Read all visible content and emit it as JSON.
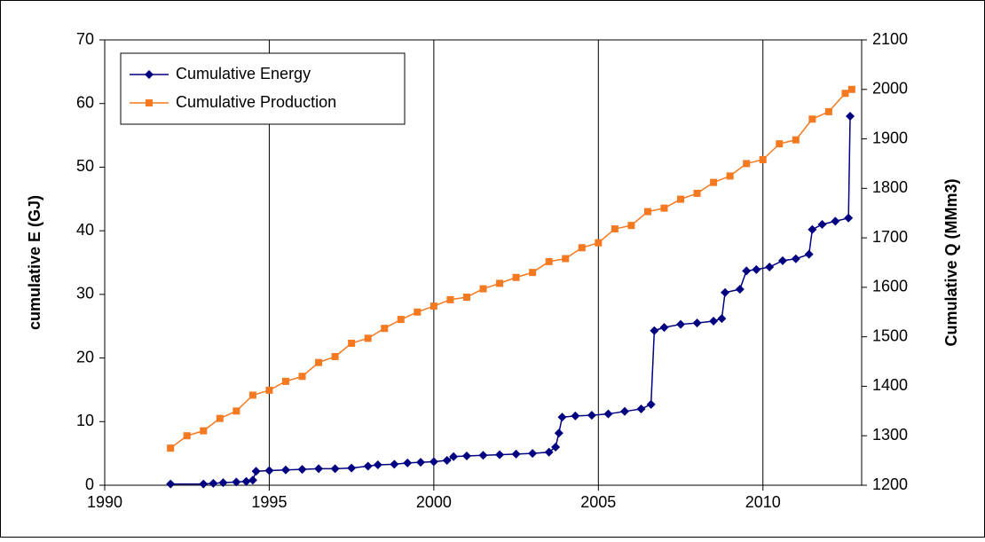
{
  "chart_data": {
    "type": "line",
    "y_label": "cumulative E (GJ)",
    "y2_label": "Cumulative Q (MMm3)",
    "xlim": [
      1990,
      2013
    ],
    "xticks": [
      1990,
      1995,
      2000,
      2005,
      2010
    ],
    "ylim": [
      0,
      70
    ],
    "yticks": [
      0,
      10,
      20,
      30,
      40,
      50,
      60,
      70
    ],
    "y2lim": [
      1200,
      2100
    ],
    "y2ticks": [
      1200,
      1300,
      1400,
      1500,
      1600,
      1700,
      1800,
      1900,
      2000,
      2100
    ],
    "grid": "x",
    "legend": "upper left",
    "series": [
      {
        "name": "Cumulative Energy",
        "color": "#000080",
        "marker": "diamond",
        "x": [
          1992.0,
          1993.0,
          1993.3,
          1993.6,
          1994.0,
          1994.3,
          1994.5,
          1994.6,
          1995.0,
          1995.5,
          1996.0,
          1996.5,
          1997.0,
          1997.5,
          1998.0,
          1998.3,
          1998.8,
          1999.2,
          1999.6,
          2000.0,
          2000.4,
          2000.6,
          2001.0,
          2001.5,
          2002.0,
          2002.5,
          2003.0,
          2003.5,
          2003.7,
          2003.8,
          2003.9,
          2004.3,
          2004.8,
          2005.3,
          2005.8,
          2006.3,
          2006.6,
          2006.7,
          2007.0,
          2007.5,
          2008.0,
          2008.5,
          2008.75,
          2008.85,
          2009.3,
          2009.5,
          2009.8,
          2010.2,
          2010.6,
          2011.0,
          2011.4,
          2011.5,
          2011.8,
          2012.2,
          2012.6,
          2012.65
        ],
        "values": [
          0.2,
          0.2,
          0.3,
          0.4,
          0.5,
          0.6,
          0.8,
          2.2,
          2.3,
          2.4,
          2.5,
          2.6,
          2.6,
          2.7,
          3.0,
          3.2,
          3.3,
          3.5,
          3.6,
          3.7,
          3.9,
          4.5,
          4.6,
          4.7,
          4.8,
          4.9,
          5.0,
          5.2,
          6.0,
          8.2,
          10.7,
          10.9,
          11.0,
          11.2,
          11.6,
          12.0,
          12.7,
          24.3,
          24.8,
          25.3,
          25.5,
          25.8,
          26.2,
          30.3,
          30.8,
          33.7,
          33.9,
          34.3,
          35.3,
          35.6,
          36.3,
          40.2,
          41.0,
          41.5,
          42.0,
          58.0
        ]
      },
      {
        "name": "Cumulative Production",
        "color": "#f47920",
        "marker": "square",
        "axis": "y2",
        "x": [
          1992.0,
          1992.5,
          1993.0,
          1993.5,
          1994.0,
          1994.5,
          1995.0,
          1995.5,
          1996.0,
          1996.5,
          1997.0,
          1997.5,
          1998.0,
          1998.5,
          1999.0,
          1999.5,
          2000.0,
          2000.5,
          2001.0,
          2001.5,
          2002.0,
          2002.5,
          2003.0,
          2003.5,
          2004.0,
          2004.5,
          2005.0,
          2005.5,
          2006.0,
          2006.5,
          2007.0,
          2007.5,
          2008.0,
          2008.5,
          2009.0,
          2009.5,
          2010.0,
          2010.5,
          2011.0,
          2011.5,
          2012.0,
          2012.5,
          2012.7
        ],
        "values": [
          1275,
          1300,
          1310,
          1335,
          1350,
          1382,
          1392,
          1410,
          1420,
          1448,
          1460,
          1487,
          1497,
          1517,
          1535,
          1550,
          1562,
          1575,
          1580,
          1597,
          1608,
          1620,
          1630,
          1652,
          1658,
          1680,
          1690,
          1718,
          1725,
          1753,
          1760,
          1778,
          1790,
          1812,
          1825,
          1850,
          1858,
          1890,
          1898,
          1940,
          1955,
          1992,
          2000
        ]
      }
    ]
  }
}
